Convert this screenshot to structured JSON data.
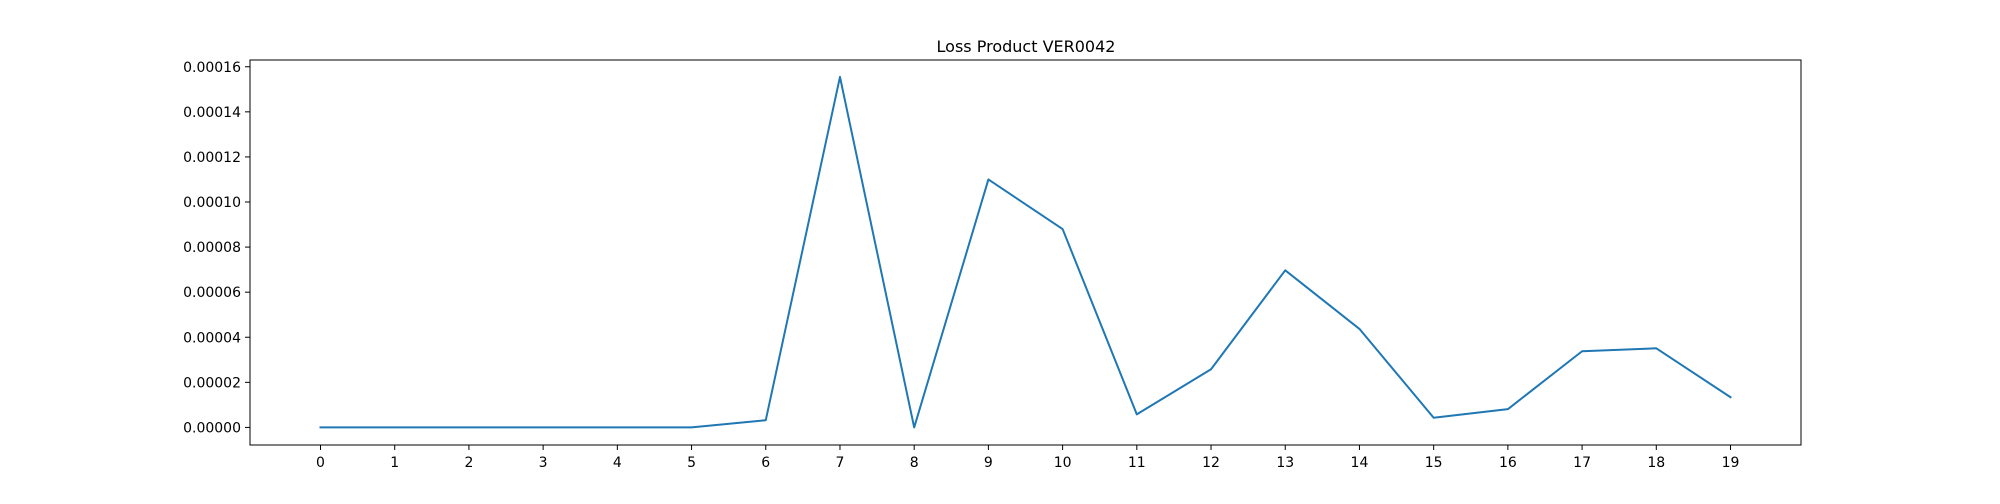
{
  "chart_data": {
    "type": "line",
    "title": "Loss Product VER0042",
    "xlabel": "",
    "ylabel": "",
    "x": [
      0,
      1,
      2,
      3,
      4,
      5,
      6,
      7,
      8,
      9,
      10,
      11,
      12,
      13,
      14,
      15,
      16,
      17,
      18,
      19
    ],
    "xlim": [
      -0.95,
      19.95
    ],
    "ylim": [
      -7.8e-06,
      0.000163
    ],
    "x_ticks": [
      "0",
      "1",
      "2",
      "3",
      "4",
      "5",
      "6",
      "7",
      "8",
      "9",
      "10",
      "11",
      "12",
      "13",
      "14",
      "15",
      "16",
      "17",
      "18",
      "19"
    ],
    "y_ticks": [
      0,
      2e-05,
      4e-05,
      6e-05,
      8e-05,
      0.0001,
      0.00012,
      0.00014,
      0.00016
    ],
    "y_tick_labels": [
      "0.00000",
      "0.00002",
      "0.00004",
      "0.00006",
      "0.00008",
      "0.00010",
      "0.00012",
      "0.00014",
      "0.00016"
    ],
    "grid": false,
    "series": [
      {
        "color": "#1f77b4",
        "values": [
          0,
          0,
          0,
          0,
          0,
          0,
          3.2e-06,
          0.0001555,
          0,
          0.00011,
          8.8e-05,
          5.8e-06,
          2.58e-05,
          6.97e-05,
          4.37e-05,
          4.3e-06,
          8.1e-06,
          3.38e-05,
          3.51e-05,
          1.34e-05
        ]
      }
    ]
  }
}
